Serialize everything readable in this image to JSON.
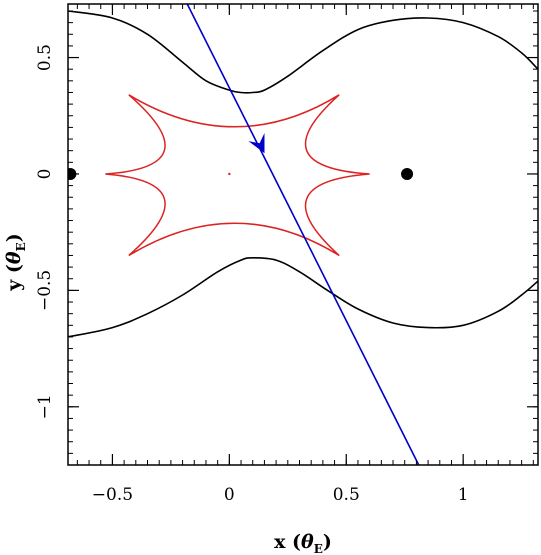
{
  "chart_data": {
    "type": "line",
    "title": "",
    "xlabel": {
      "prefix": "x (",
      "symbol": "θ",
      "sub": "E",
      "suffix": ")"
    },
    "ylabel": {
      "prefix": "y (",
      "symbol": "θ",
      "sub": "E",
      "suffix": ")"
    },
    "xlim": [
      -0.69,
      1.32
    ],
    "ylim": [
      -1.25,
      0.73
    ],
    "x_ticks": [
      {
        "value": -0.5,
        "label": "−0.5"
      },
      {
        "value": 0,
        "label": "0"
      },
      {
        "value": 0.5,
        "label": "0.5"
      },
      {
        "value": 1,
        "label": "1"
      }
    ],
    "y_ticks": [
      {
        "value": 0.5,
        "label": "0.5"
      },
      {
        "value": 0,
        "label": "0"
      },
      {
        "value": -0.5,
        "label": "−0.5"
      },
      {
        "value": -1,
        "label": "−1"
      }
    ],
    "lens_masses": [
      {
        "x": -0.68,
        "y": 0.0
      },
      {
        "x": 0.76,
        "y": 0.0
      }
    ],
    "critical_curve_upper": {
      "color": "#000000",
      "x": [
        -0.69,
        -0.5,
        -0.35,
        -0.2,
        -0.1,
        0.0,
        0.05,
        0.1,
        0.15,
        0.25,
        0.4,
        0.55,
        0.7,
        0.85,
        1.0,
        1.15,
        1.25,
        1.32
      ],
      "y": [
        0.7,
        0.67,
        0.6,
        0.48,
        0.4,
        0.36,
        0.35,
        0.35,
        0.36,
        0.42,
        0.53,
        0.62,
        0.66,
        0.67,
        0.65,
        0.59,
        0.52,
        0.45
      ]
    },
    "critical_curve_lower": {
      "color": "#000000",
      "x": [
        -0.69,
        -0.5,
        -0.35,
        -0.2,
        -0.05,
        0.05,
        0.1,
        0.2,
        0.3,
        0.42,
        0.55,
        0.7,
        0.85,
        1.0,
        1.15,
        1.25,
        1.32
      ],
      "y": [
        -0.7,
        -0.66,
        -0.6,
        -0.52,
        -0.42,
        -0.37,
        -0.36,
        -0.37,
        -0.42,
        -0.5,
        -0.58,
        -0.64,
        -0.66,
        -0.65,
        -0.59,
        -0.52,
        -0.46
      ]
    },
    "caustic": {
      "color": "#dd2222",
      "cusps": [
        {
          "x": -0.43,
          "y": 0.34
        },
        {
          "x": 0.47,
          "y": 0.34
        },
        {
          "x": 0.6,
          "y": 0.0
        },
        {
          "x": 0.47,
          "y": -0.35
        },
        {
          "x": -0.43,
          "y": -0.35
        },
        {
          "x": -0.53,
          "y": 0.0
        }
      ],
      "extra_point": {
        "x": 0.0,
        "y": 0.0
      }
    },
    "source_trajectory": {
      "color": "#0000cc",
      "x": [
        -0.18,
        0.81
      ],
      "y": [
        0.73,
        -1.25
      ],
      "arrow_at": {
        "x": 0.135,
        "y": 0.12
      }
    }
  }
}
